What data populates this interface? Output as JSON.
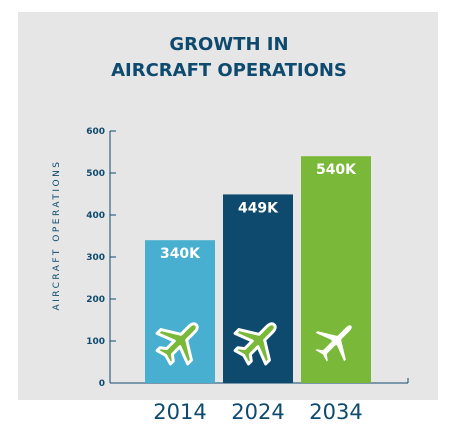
{
  "chart_data": {
    "type": "bar",
    "title_lines": [
      "GROWTH IN",
      "AIRCRAFT OPERATIONS"
    ],
    "ylabel": "AIRCRAFT OPERATIONS",
    "xlabel": "",
    "categories": [
      "2014",
      "2024",
      "2034"
    ],
    "values": [
      340,
      449,
      540
    ],
    "value_units": "thousands",
    "data_labels": [
      "340K",
      "449K",
      "540K"
    ],
    "ylim": [
      0,
      600
    ],
    "yticks": [
      "0",
      "100",
      "200",
      "300",
      "400",
      "500",
      "600"
    ],
    "grid": false,
    "legend": "none",
    "bar_icon": "airplane-icon"
  },
  "colors": {
    "title": "#0e4a6e",
    "background_panel": "#e6e6e6",
    "bars": [
      "#49afd0",
      "#0e4a6e",
      "#7ab83a"
    ],
    "icon_color": "#7ab83a",
    "data_label_text": "#ffffff"
  }
}
